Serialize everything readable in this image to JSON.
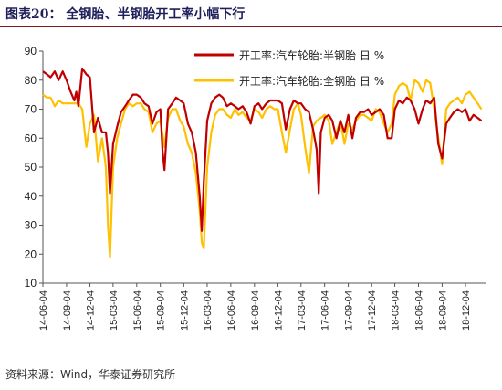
{
  "figure": {
    "title": "图表20：  全钢胎、半钢胎开工率小幅下行",
    "source": "资料来源：Wind，华泰证券研究所"
  },
  "chart_data": {
    "type": "line",
    "ylim": [
      10,
      90
    ],
    "yticks": [
      10,
      20,
      30,
      40,
      50,
      60,
      70,
      80,
      90
    ],
    "xlim": [
      "2014-06-04",
      "2019-02-20"
    ],
    "xticks": [
      "14-06-04",
      "14-09-04",
      "14-12-04",
      "15-03-04",
      "15-06-04",
      "15-09-04",
      "15-12-04",
      "16-03-04",
      "16-06-04",
      "16-09-04",
      "16-12-04",
      "17-03-04",
      "17-06-04",
      "17-09-04",
      "17-12-04",
      "18-03-04",
      "18-06-04",
      "18-09-04",
      "18-12-04"
    ],
    "grid": false,
    "legend_position": "top-right",
    "series": [
      {
        "name": "开工率:汽车轮胎:半钢胎 日 %",
        "color": "#c00000",
        "points": [
          [
            "2014-06-04",
            83
          ],
          [
            "2014-06-20",
            82
          ],
          [
            "2014-07-04",
            81
          ],
          [
            "2014-07-20",
            83
          ],
          [
            "2014-08-04",
            80
          ],
          [
            "2014-08-20",
            83
          ],
          [
            "2014-09-04",
            80
          ],
          [
            "2014-09-20",
            76
          ],
          [
            "2014-10-04",
            73
          ],
          [
            "2014-10-12",
            76
          ],
          [
            "2014-10-20",
            71
          ],
          [
            "2014-11-04",
            84
          ],
          [
            "2014-11-20",
            82
          ],
          [
            "2014-12-04",
            81
          ],
          [
            "2014-12-20",
            62
          ],
          [
            "2015-01-04",
            67
          ],
          [
            "2015-01-20",
            62
          ],
          [
            "2015-02-04",
            62
          ],
          [
            "2015-02-12",
            55
          ],
          [
            "2015-02-20",
            41
          ],
          [
            "2015-03-04",
            58
          ],
          [
            "2015-03-20",
            64
          ],
          [
            "2015-04-04",
            69
          ],
          [
            "2015-04-20",
            71
          ],
          [
            "2015-05-04",
            73
          ],
          [
            "2015-05-20",
            75
          ],
          [
            "2015-06-04",
            75
          ],
          [
            "2015-06-20",
            74
          ],
          [
            "2015-07-04",
            72
          ],
          [
            "2015-07-20",
            71
          ],
          [
            "2015-08-04",
            65
          ],
          [
            "2015-08-20",
            69
          ],
          [
            "2015-09-04",
            70
          ],
          [
            "2015-09-12",
            56
          ],
          [
            "2015-09-20",
            49
          ],
          [
            "2015-10-04",
            70
          ],
          [
            "2015-10-20",
            72
          ],
          [
            "2015-11-04",
            74
          ],
          [
            "2015-11-20",
            73
          ],
          [
            "2015-12-04",
            72
          ],
          [
            "2015-12-20",
            65
          ],
          [
            "2016-01-04",
            62
          ],
          [
            "2016-01-20",
            55
          ],
          [
            "2016-02-04",
            40
          ],
          [
            "2016-02-12",
            28
          ],
          [
            "2016-02-20",
            45
          ],
          [
            "2016-03-04",
            66
          ],
          [
            "2016-03-20",
            72
          ],
          [
            "2016-04-04",
            74
          ],
          [
            "2016-04-20",
            75
          ],
          [
            "2016-05-04",
            74
          ],
          [
            "2016-05-20",
            71
          ],
          [
            "2016-06-04",
            72
          ],
          [
            "2016-06-20",
            71
          ],
          [
            "2016-07-04",
            70
          ],
          [
            "2016-07-20",
            71
          ],
          [
            "2016-08-04",
            69
          ],
          [
            "2016-08-20",
            65
          ],
          [
            "2016-09-04",
            71
          ],
          [
            "2016-09-20",
            72
          ],
          [
            "2016-10-04",
            70
          ],
          [
            "2016-10-20",
            72
          ],
          [
            "2016-11-04",
            73
          ],
          [
            "2016-11-20",
            73
          ],
          [
            "2016-12-04",
            73
          ],
          [
            "2016-12-20",
            72
          ],
          [
            "2017-01-04",
            63
          ],
          [
            "2017-01-20",
            70
          ],
          [
            "2017-02-04",
            73
          ],
          [
            "2017-02-20",
            72
          ],
          [
            "2017-03-04",
            72
          ],
          [
            "2017-03-20",
            70
          ],
          [
            "2017-04-04",
            69
          ],
          [
            "2017-04-20",
            63
          ],
          [
            "2017-05-04",
            56
          ],
          [
            "2017-05-12",
            41
          ],
          [
            "2017-05-20",
            62
          ],
          [
            "2017-06-04",
            67
          ],
          [
            "2017-06-20",
            68
          ],
          [
            "2017-07-04",
            66
          ],
          [
            "2017-07-20",
            60
          ],
          [
            "2017-08-04",
            66
          ],
          [
            "2017-08-20",
            62
          ],
          [
            "2017-09-04",
            68
          ],
          [
            "2017-09-20",
            60
          ],
          [
            "2017-10-04",
            67
          ],
          [
            "2017-10-20",
            69
          ],
          [
            "2017-11-04",
            69
          ],
          [
            "2017-11-20",
            70
          ],
          [
            "2017-12-04",
            68
          ],
          [
            "2017-12-20",
            69
          ],
          [
            "2018-01-04",
            70
          ],
          [
            "2018-01-20",
            68
          ],
          [
            "2018-02-04",
            60
          ],
          [
            "2018-02-20",
            60
          ],
          [
            "2018-03-04",
            70
          ],
          [
            "2018-03-20",
            73
          ],
          [
            "2018-04-04",
            72
          ],
          [
            "2018-04-20",
            74
          ],
          [
            "2018-05-04",
            73
          ],
          [
            "2018-05-20",
            70
          ],
          [
            "2018-06-04",
            65
          ],
          [
            "2018-06-20",
            70
          ],
          [
            "2018-07-04",
            73
          ],
          [
            "2018-07-20",
            72
          ],
          [
            "2018-08-04",
            74
          ],
          [
            "2018-08-20",
            58
          ],
          [
            "2018-09-04",
            53
          ],
          [
            "2018-09-20",
            65
          ],
          [
            "2018-10-04",
            67
          ],
          [
            "2018-10-20",
            69
          ],
          [
            "2018-11-04",
            70
          ],
          [
            "2018-11-20",
            69
          ],
          [
            "2018-12-04",
            70
          ],
          [
            "2018-12-20",
            66
          ],
          [
            "2019-01-04",
            68
          ],
          [
            "2019-01-20",
            67
          ],
          [
            "2019-02-04",
            66
          ]
        ]
      },
      {
        "name": "开工率:汽车轮胎:全钢胎 日 %",
        "color": "#ffc000",
        "points": [
          [
            "2014-06-04",
            75
          ],
          [
            "2014-06-20",
            74
          ],
          [
            "2014-07-04",
            74
          ],
          [
            "2014-07-20",
            71
          ],
          [
            "2014-08-04",
            73
          ],
          [
            "2014-08-20",
            72
          ],
          [
            "2014-09-04",
            72
          ],
          [
            "2014-09-20",
            72
          ],
          [
            "2014-10-04",
            72
          ],
          [
            "2014-10-20",
            72
          ],
          [
            "2014-11-04",
            70
          ],
          [
            "2014-11-20",
            57
          ],
          [
            "2014-12-04",
            65
          ],
          [
            "2014-12-20",
            68
          ],
          [
            "2015-01-04",
            52
          ],
          [
            "2015-01-20",
            60
          ],
          [
            "2015-02-04",
            50
          ],
          [
            "2015-02-12",
            30
          ],
          [
            "2015-02-20",
            19
          ],
          [
            "2015-03-04",
            50
          ],
          [
            "2015-03-20",
            60
          ],
          [
            "2015-04-04",
            65
          ],
          [
            "2015-04-20",
            70
          ],
          [
            "2015-05-04",
            72
          ],
          [
            "2015-05-20",
            71
          ],
          [
            "2015-06-04",
            72
          ],
          [
            "2015-06-20",
            72
          ],
          [
            "2015-07-04",
            70
          ],
          [
            "2015-07-20",
            69
          ],
          [
            "2015-08-04",
            62
          ],
          [
            "2015-08-20",
            65
          ],
          [
            "2015-09-04",
            66
          ],
          [
            "2015-09-20",
            57
          ],
          [
            "2015-10-04",
            67
          ],
          [
            "2015-10-20",
            70
          ],
          [
            "2015-11-04",
            70
          ],
          [
            "2015-11-20",
            66
          ],
          [
            "2015-12-04",
            64
          ],
          [
            "2015-12-20",
            58
          ],
          [
            "2016-01-04",
            55
          ],
          [
            "2016-01-20",
            48
          ],
          [
            "2016-02-04",
            35
          ],
          [
            "2016-02-12",
            24
          ],
          [
            "2016-02-20",
            22
          ],
          [
            "2016-03-04",
            50
          ],
          [
            "2016-03-20",
            62
          ],
          [
            "2016-04-04",
            68
          ],
          [
            "2016-04-20",
            70
          ],
          [
            "2016-05-04",
            70
          ],
          [
            "2016-05-20",
            68
          ],
          [
            "2016-06-04",
            67
          ],
          [
            "2016-06-20",
            70
          ],
          [
            "2016-07-04",
            68
          ],
          [
            "2016-07-20",
            69
          ],
          [
            "2016-08-04",
            67
          ],
          [
            "2016-08-20",
            66
          ],
          [
            "2016-09-04",
            70
          ],
          [
            "2016-09-20",
            69
          ],
          [
            "2016-10-04",
            67
          ],
          [
            "2016-10-20",
            70
          ],
          [
            "2016-11-04",
            71
          ],
          [
            "2016-11-20",
            70
          ],
          [
            "2016-12-04",
            70
          ],
          [
            "2016-12-20",
            62
          ],
          [
            "2017-01-04",
            55
          ],
          [
            "2017-01-20",
            63
          ],
          [
            "2017-02-04",
            70
          ],
          [
            "2017-02-20",
            72
          ],
          [
            "2017-03-04",
            68
          ],
          [
            "2017-03-20",
            57
          ],
          [
            "2017-04-04",
            48
          ],
          [
            "2017-04-20",
            64
          ],
          [
            "2017-05-04",
            66
          ],
          [
            "2017-05-20",
            67
          ],
          [
            "2017-06-04",
            68
          ],
          [
            "2017-06-20",
            66
          ],
          [
            "2017-07-04",
            58
          ],
          [
            "2017-07-20",
            62
          ],
          [
            "2017-08-04",
            66
          ],
          [
            "2017-08-20",
            58
          ],
          [
            "2017-09-04",
            65
          ],
          [
            "2017-09-20",
            63
          ],
          [
            "2017-10-04",
            66
          ],
          [
            "2017-10-20",
            68
          ],
          [
            "2017-11-04",
            68
          ],
          [
            "2017-11-20",
            67
          ],
          [
            "2017-12-04",
            66
          ],
          [
            "2017-12-20",
            70
          ],
          [
            "2018-01-04",
            69
          ],
          [
            "2018-01-20",
            65
          ],
          [
            "2018-02-04",
            62
          ],
          [
            "2018-02-20",
            65
          ],
          [
            "2018-03-04",
            75
          ],
          [
            "2018-03-20",
            78
          ],
          [
            "2018-04-04",
            79
          ],
          [
            "2018-04-20",
            78
          ],
          [
            "2018-05-04",
            73
          ],
          [
            "2018-05-20",
            80
          ],
          [
            "2018-06-04",
            79
          ],
          [
            "2018-06-20",
            76
          ],
          [
            "2018-07-04",
            80
          ],
          [
            "2018-07-20",
            79
          ],
          [
            "2018-08-04",
            70
          ],
          [
            "2018-08-20",
            60
          ],
          [
            "2018-09-04",
            51
          ],
          [
            "2018-09-20",
            70
          ],
          [
            "2018-10-04",
            72
          ],
          [
            "2018-10-20",
            73
          ],
          [
            "2018-11-04",
            74
          ],
          [
            "2018-11-20",
            72
          ],
          [
            "2018-12-04",
            75
          ],
          [
            "2018-12-20",
            76
          ],
          [
            "2019-01-04",
            74
          ],
          [
            "2019-01-20",
            72
          ],
          [
            "2019-02-04",
            70
          ]
        ]
      }
    ]
  }
}
